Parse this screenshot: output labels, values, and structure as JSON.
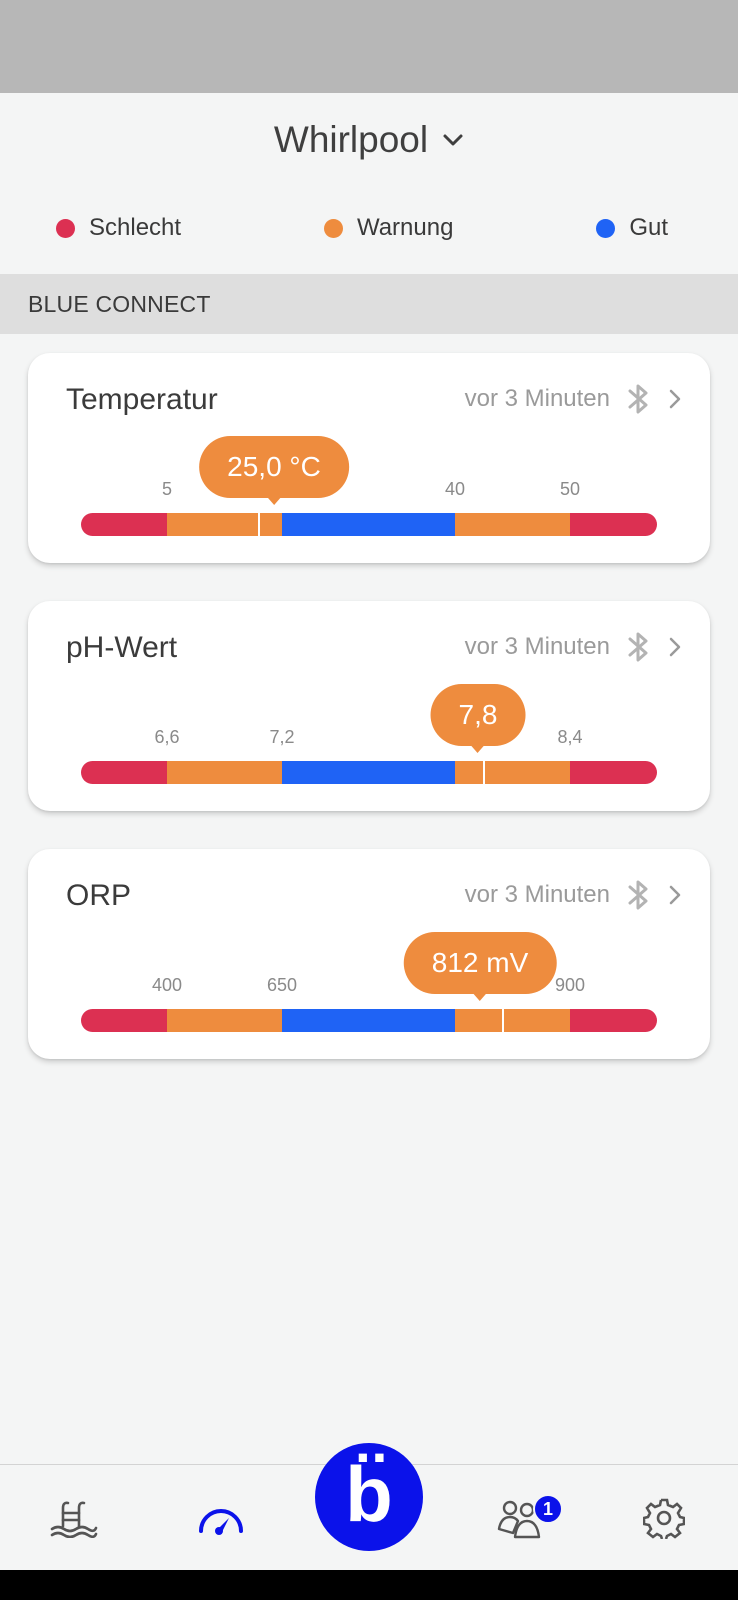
{
  "app": {
    "title": "Whirlpool",
    "title_icon": "chevron-down-icon"
  },
  "legend": [
    {
      "label": "Schlecht",
      "color": "#dc3052"
    },
    {
      "label": "Warnung",
      "color": "#ee8c3e"
    },
    {
      "label": "Gut",
      "color": "#1f63f5"
    }
  ],
  "section": {
    "title": "BLUE CONNECT"
  },
  "colors": {
    "bad": "#dc3052",
    "warning": "#ee8c3e",
    "good": "#1f63f5",
    "brand": "#0b12ea",
    "tab_active": "#0b12ea",
    "tab_inactive": "#555555"
  },
  "cards": [
    {
      "title": "Temperatur",
      "time": "vor 3 Minuten",
      "icon": "bluetooth-icon",
      "ticks": [
        "5",
        "40",
        "50"
      ],
      "value": "25,0 °C",
      "reading": 25.0,
      "unit": "°C"
    },
    {
      "title": "pH-Wert",
      "time": "vor 3 Minuten",
      "icon": "bluetooth-icon",
      "ticks": [
        "6,6",
        "7,2",
        "8,4"
      ],
      "value": "7,8",
      "reading": 7.8
    },
    {
      "title": "ORP",
      "time": "vor 3 Minuten",
      "icon": "bluetooth-icon",
      "ticks": [
        "400",
        "650",
        "900"
      ],
      "value": "812 mV",
      "reading": 812,
      "unit": "mV"
    }
  ],
  "nav": {
    "items": [
      {
        "icon": "pool-icon",
        "active": false
      },
      {
        "icon": "gauge-icon",
        "active": true
      },
      {
        "icon": "blue-logo-icon",
        "label": "b̈",
        "active": false
      },
      {
        "icon": "community-icon",
        "badge": "1",
        "active": false
      },
      {
        "icon": "settings-icon",
        "active": false
      }
    ]
  }
}
